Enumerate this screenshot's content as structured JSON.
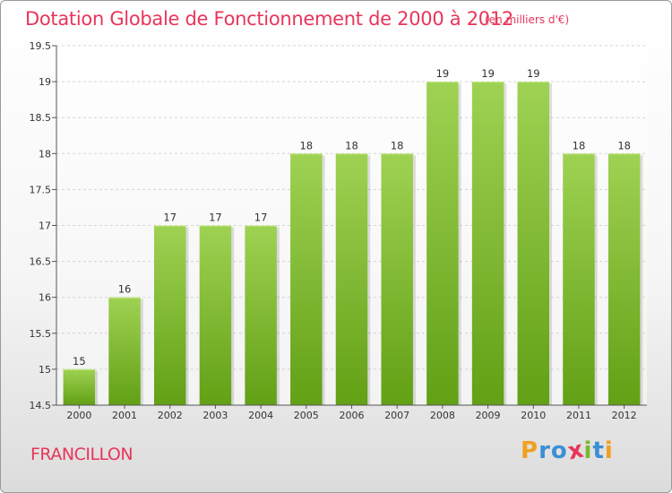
{
  "header": {
    "title": "Dotation Globale de Fonctionnement de 2000 à 2012",
    "subtitle": "(en milliers d'€)"
  },
  "footer": {
    "location": "FRANCILLON",
    "logo": "Proxiti",
    "logo_letters": [
      {
        "char": "P",
        "color": "#f0a020"
      },
      {
        "char": "r",
        "color": "#3a8fd6"
      },
      {
        "char": "o",
        "color": "#3a8fd6"
      },
      {
        "char": "x",
        "color": "#e8355b"
      },
      {
        "char": "i",
        "color": "#7ab82e"
      },
      {
        "char": "t",
        "color": "#3a8fd6"
      },
      {
        "char": "i",
        "color": "#f0a020"
      }
    ]
  },
  "colors": {
    "bar_light": "#9fd253",
    "bar_dark": "#62a015",
    "title": "#e8355b"
  },
  "chart_data": {
    "type": "bar",
    "title": "Dotation Globale de Fonctionnement de 2000 à 2012",
    "subtitle": "(en milliers d'€)",
    "categories": [
      "2000",
      "2001",
      "2002",
      "2003",
      "2004",
      "2005",
      "2006",
      "2007",
      "2008",
      "2009",
      "2010",
      "2011",
      "2012"
    ],
    "values": [
      15,
      16,
      17,
      17,
      17,
      18,
      18,
      18,
      19,
      19,
      19,
      18,
      18
    ],
    "value_labels": [
      "15",
      "16",
      "17",
      "17",
      "17",
      "18",
      "18",
      "18",
      "19",
      "19",
      "19",
      "18",
      "18"
    ],
    "ylim": [
      14.5,
      19.5
    ],
    "yticks": [
      14.5,
      15,
      15.5,
      16,
      16.5,
      17,
      17.5,
      18,
      18.5,
      19,
      19.5
    ],
    "ytick_labels": [
      "14.5",
      "15",
      "15.5",
      "16",
      "16.5",
      "17",
      "17.5",
      "18",
      "18.5",
      "19",
      "19.5"
    ],
    "grid": true,
    "legend": "none"
  }
}
